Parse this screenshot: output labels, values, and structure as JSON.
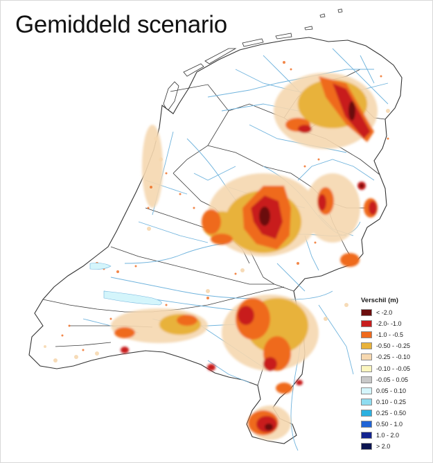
{
  "title": "Gemiddeld scenario",
  "legend": {
    "title": "Verschil (m)",
    "items": [
      {
        "label": "< -2.0",
        "color": "#6b0d0d"
      },
      {
        "label": "-2.0- -1.0",
        "color": "#c81e1e"
      },
      {
        "label": "-1.0 - -0.5",
        "color": "#ef6a1d"
      },
      {
        "label": "-0.50 - -0.25",
        "color": "#e8b23a"
      },
      {
        "label": "-0.25 - -0.10",
        "color": "#f6d8b0"
      },
      {
        "label": "-0.10 - -0.05",
        "color": "#fbf6bf"
      },
      {
        "label": "-0.05 - 0.05",
        "color": "#c8c8c8"
      },
      {
        "label": "0.05 - 0.10",
        "color": "#d4f5fb"
      },
      {
        "label": "0.10 - 0.25",
        "color": "#8fdcf0"
      },
      {
        "label": "0.25 - 0.50",
        "color": "#2bb0e0"
      },
      {
        "label": "0.50 - 1.0",
        "color": "#1f63d6"
      },
      {
        "label": "1.0 - 2.0",
        "color": "#12238f"
      },
      {
        "label": "> 2.0",
        "color": "#0b1450"
      }
    ]
  },
  "map": {
    "colors": {
      "outline": "#333333",
      "rivers": "#6fb3dd",
      "land": "#ffffff"
    }
  }
}
